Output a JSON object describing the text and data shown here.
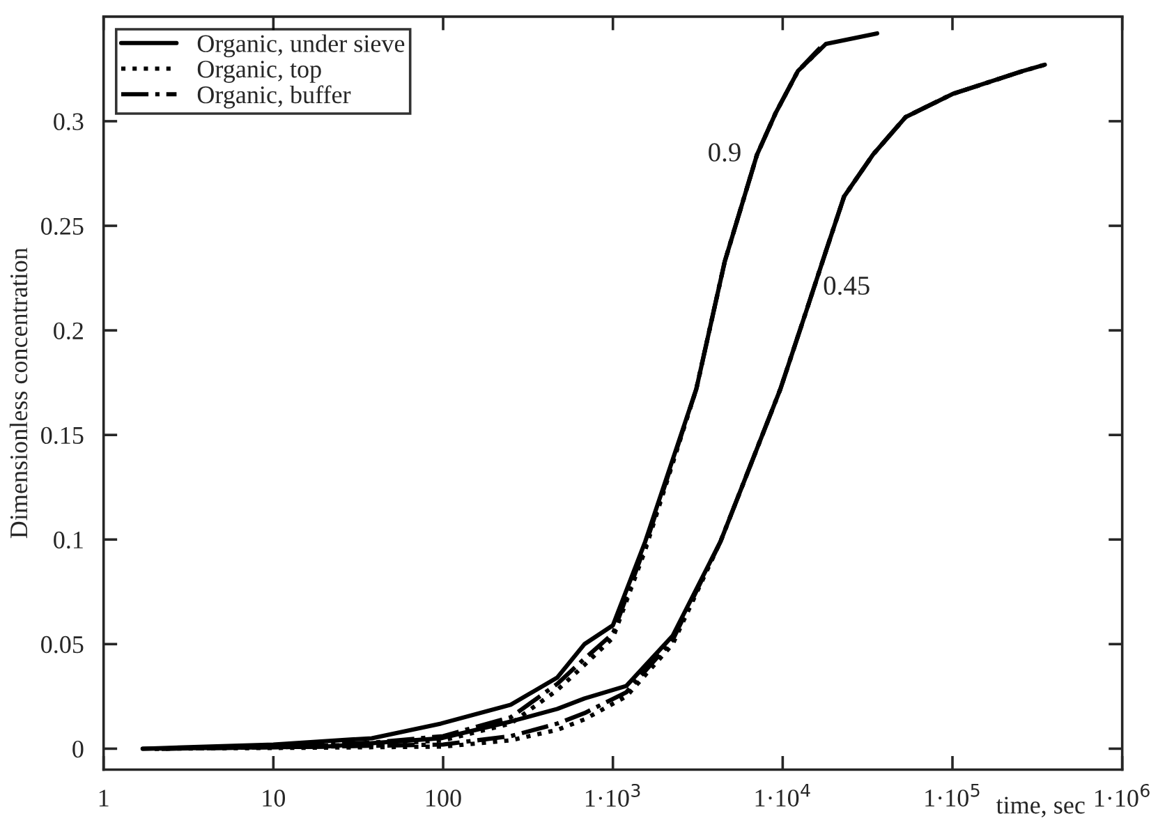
{
  "chart_data": {
    "type": "line",
    "xlabel": "time, sec",
    "ylabel": "Dimensionless concentration",
    "log": "x",
    "xlim": [
      1,
      1000000
    ],
    "ylim": [
      -0.01,
      0.35
    ],
    "xticks": [
      1,
      10,
      100,
      {
        "value": 1000,
        "label": "1·10$^{3}$"
      },
      {
        "value": 10000,
        "label": "1·10$^{4}$"
      },
      {
        "value": 100000,
        "label": "1·10$^{5}$"
      },
      {
        "value": 1000000,
        "label": "1·10$^{6}$"
      }
    ],
    "yticks": [
      0,
      0.05,
      0.1,
      0.15,
      0.2,
      0.25,
      0.3
    ],
    "grid": false,
    "legend": "top left",
    "marker": "none",
    "series": [
      {
        "name": "Organic, under sieve",
        "color": "#000000",
        "line_style": "solid",
        "x": [
          1.7,
          10,
          38,
          97,
          250,
          470,
          680,
          1000,
          1550,
          3100,
          4560,
          7060,
          9100,
          12300,
          18000,
          36000
        ],
        "values": [
          0,
          0.002,
          0.005,
          0.012,
          0.021,
          0.034,
          0.05,
          0.059,
          0.099,
          0.172,
          0.233,
          0.284,
          0.304,
          0.324,
          0.337,
          0.342
        ]
      },
      {
        "name": "Organic, top",
        "color": "#000000",
        "line_style": "dotted",
        "x": [
          2,
          10,
          40,
          100,
          250,
          470,
          680,
          1000,
          1550,
          3100,
          4560,
          7060,
          9100,
          12300,
          18000
        ],
        "values": [
          0,
          0.001,
          0.002,
          0.004,
          0.012,
          0.028,
          0.04,
          0.053,
          0.095,
          0.172,
          0.233,
          0.284,
          0.304,
          0.324,
          0.337
        ]
      },
      {
        "name": "Organic, buffer",
        "color": "#000000",
        "line_style": "dashdot",
        "x": [
          2.2,
          10,
          40,
          100,
          250,
          470,
          680,
          1000,
          1550,
          3100,
          4560,
          7060,
          9100,
          12300,
          17000
        ],
        "values": [
          0,
          0.001,
          0.003,
          0.006,
          0.015,
          0.031,
          0.043,
          0.055,
          0.097,
          0.172,
          0.233,
          0.284,
          0.304,
          0.324,
          0.336
        ]
      },
      {
        "color": "#000000",
        "line_style": "solid",
        "x": [
          1.7,
          20,
          97,
          250,
          470,
          680,
          1200,
          2250,
          4300,
          9700,
          14000,
          18000,
          23000,
          34000,
          53000,
          100000,
          260000,
          350000
        ],
        "values": [
          0,
          0.001,
          0.005,
          0.013,
          0.019,
          0.024,
          0.03,
          0.054,
          0.099,
          0.172,
          0.211,
          0.238,
          0.264,
          0.284,
          0.302,
          0.313,
          0.324,
          0.327
        ]
      },
      {
        "color": "#000000",
        "line_style": "dotted",
        "x": [
          2,
          20,
          100,
          250,
          470,
          680,
          1200,
          2250,
          4300,
          9700,
          14000,
          18000,
          23000,
          34000,
          53000,
          100000,
          260000,
          350000
        ],
        "values": [
          0,
          0.0005,
          0.001,
          0.004,
          0.009,
          0.014,
          0.025,
          0.05,
          0.099,
          0.172,
          0.211,
          0.238,
          0.264,
          0.284,
          0.302,
          0.313,
          0.324,
          0.327
        ]
      },
      {
        "color": "#000000",
        "line_style": "dashdot",
        "x": [
          2.2,
          20,
          100,
          250,
          470,
          680,
          1200,
          2250,
          4300,
          9700,
          14000,
          18000,
          23000,
          34000,
          53000,
          100000,
          260000
        ],
        "values": [
          0,
          0.001,
          0.002,
          0.006,
          0.012,
          0.017,
          0.027,
          0.052,
          0.099,
          0.172,
          0.211,
          0.238,
          0.264,
          0.284,
          0.302,
          0.313,
          0.324
        ]
      }
    ],
    "annotations": [
      {
        "text": "0.9",
        "x": 7060,
        "y": 0.284
      },
      {
        "text": "0.45",
        "x": 14000,
        "y": 0.211
      }
    ]
  }
}
